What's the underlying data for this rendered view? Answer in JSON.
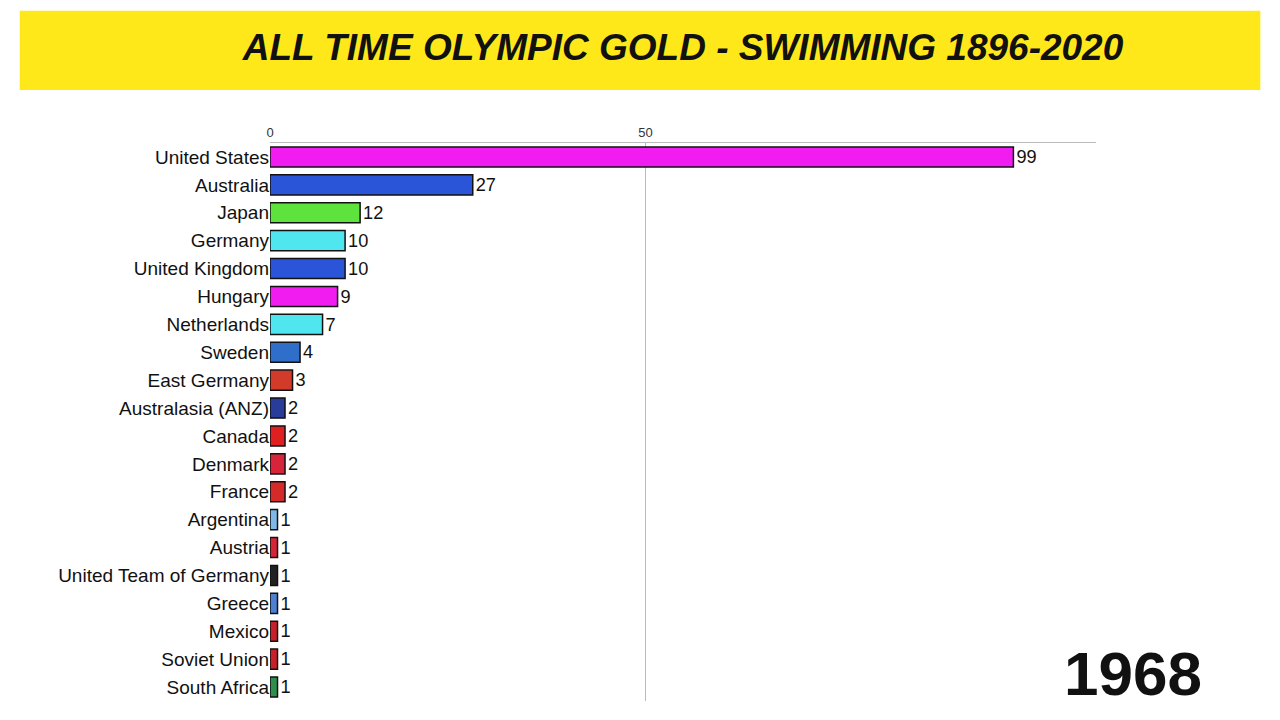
{
  "chart_data": {
    "type": "bar",
    "orientation": "horizontal",
    "title": "ALL TIME OLYMPIC GOLD - SWIMMING 1896-2020",
    "annotations": [
      {
        "text": "1968"
      }
    ],
    "categories": [
      "United States",
      "Australia",
      "Japan",
      "Germany",
      "United Kingdom",
      "Hungary",
      "Netherlands",
      "Sweden",
      "East Germany",
      "Australasia (ANZ)",
      "Canada",
      "Denmark",
      "France",
      "Argentina",
      "Austria",
      "United Team of Germany",
      "Greece",
      "Mexico",
      "Soviet Union",
      "South Africa"
    ],
    "values": [
      99,
      27,
      12,
      10,
      10,
      9,
      7,
      4,
      3,
      2,
      2,
      2,
      2,
      1,
      1,
      1,
      1,
      1,
      1,
      1
    ],
    "colors": [
      "#f01cf0",
      "#2b55d9",
      "#5de33b",
      "#4fe6f0",
      "#2b55d9",
      "#f01cf0",
      "#4fe6f0",
      "#2f6fc9",
      "#d23a2a",
      "#2a3c9a",
      "#e02020",
      "#d8243a",
      "#d52a2a",
      "#7fb8e6",
      "#d8243a",
      "#222222",
      "#4f7fd0",
      "#c8202a",
      "#c8202a",
      "#2f8f4f"
    ],
    "data_labels": true,
    "xlim": [
      0,
      110
    ],
    "xticks": [
      0,
      50
    ],
    "grid": true
  }
}
